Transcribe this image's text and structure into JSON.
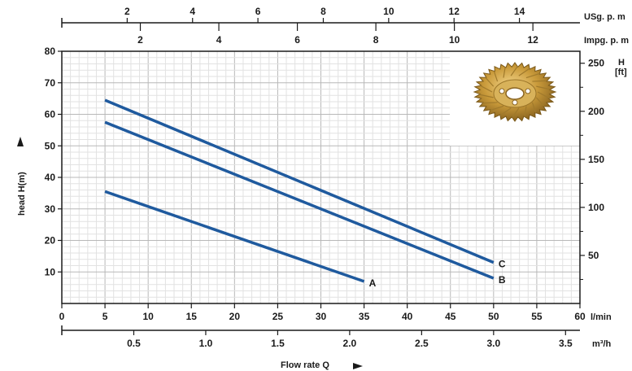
{
  "chart_data": {
    "type": "line",
    "xlabel": "Flow rate Q",
    "ylabel": "head H(m)",
    "x_unit": "l/min",
    "xlim": [
      0,
      60
    ],
    "ylim": [
      0,
      80
    ],
    "x_ticks": [
      "0",
      "5",
      "10",
      "15",
      "20",
      "25",
      "30",
      "35",
      "40",
      "45",
      "50",
      "55",
      "60"
    ],
    "y_ticks": [
      "10",
      "20",
      "30",
      "40",
      "50",
      "60",
      "70",
      "80"
    ],
    "grid": true,
    "series": [
      {
        "name": "A",
        "x": [
          5,
          35
        ],
        "y": [
          35.5,
          7
        ]
      },
      {
        "name": "B",
        "x": [
          5,
          50
        ],
        "y": [
          57.5,
          8
        ]
      },
      {
        "name": "C",
        "x": [
          5,
          50
        ],
        "y": [
          64.5,
          13
        ]
      }
    ],
    "secondary_axes": {
      "usgpm": {
        "label": "USg. p. m",
        "ticks": [
          "2",
          "4",
          "6",
          "8",
          "10",
          "12",
          "14"
        ]
      },
      "impgpm": {
        "label": "Impg. p. m",
        "ticks": [
          "2",
          "4",
          "6",
          "8",
          "10",
          "12"
        ]
      },
      "m3h": {
        "label": "m³/h",
        "ticks": [
          "0.5",
          "1.0",
          "1.5",
          "2.0",
          "2.5",
          "3.0",
          "3.5"
        ]
      },
      "ft": {
        "label": "H\n[ft]",
        "label_parts": [
          "H",
          "[ft]"
        ],
        "ticks": [
          "50",
          "100",
          "150",
          "200",
          "250"
        ]
      }
    },
    "inset_image": "brass-impeller-photo",
    "colors": {
      "curve": "#1f5a9e",
      "grid": "#cfcfcf"
    }
  }
}
